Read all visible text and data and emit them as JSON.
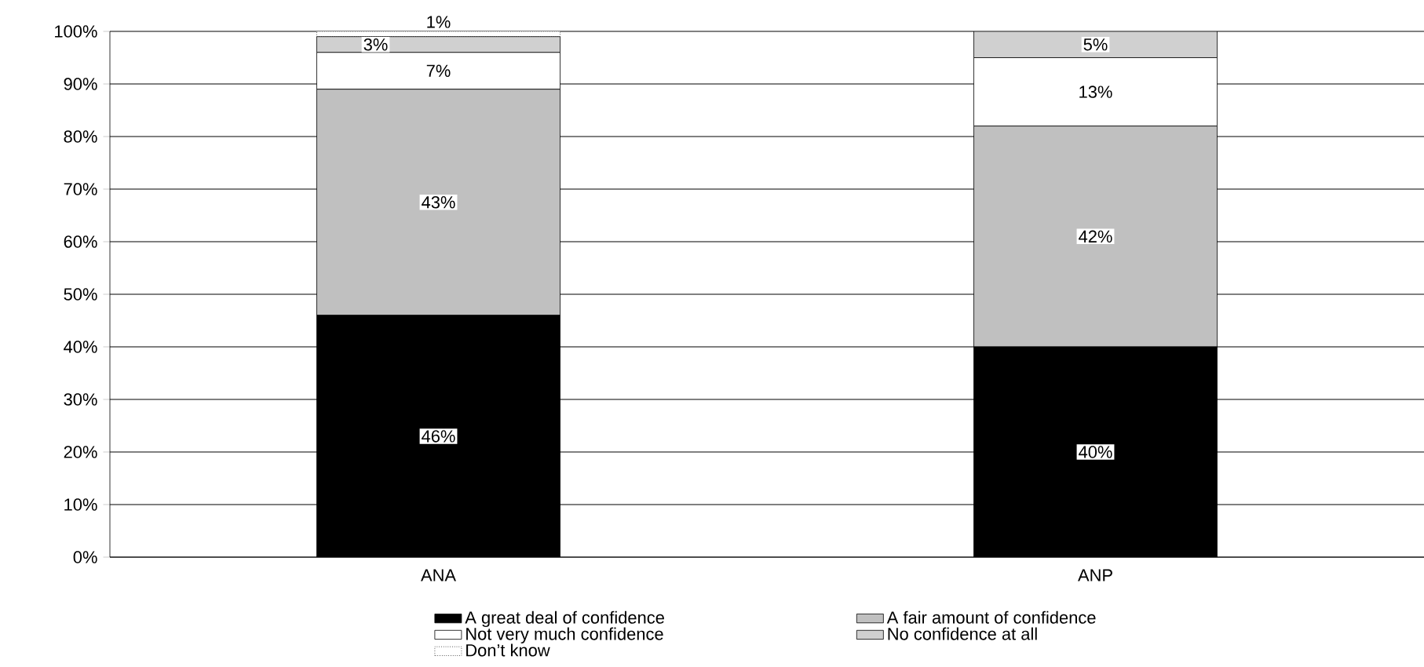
{
  "chart_data": {
    "type": "bar",
    "stacked": true,
    "categories": [
      "ANA",
      "ANP"
    ],
    "series": [
      {
        "name": "A great deal of confidence",
        "color": "#000000",
        "values": [
          46,
          40
        ],
        "value_labels": [
          "46%",
          "40%"
        ]
      },
      {
        "name": "A fair amount of confidence",
        "color": "#c0c0c0",
        "values": [
          43,
          42
        ],
        "value_labels": [
          "43%",
          "42%"
        ]
      },
      {
        "name": "Not very much confidence",
        "color": "#ffffff",
        "values": [
          7,
          13
        ],
        "value_labels": [
          "7%",
          "13%"
        ]
      },
      {
        "name": "No confidence at all",
        "color": "#d0d0d0",
        "values": [
          3,
          5
        ],
        "value_labels": [
          "3%",
          "5%"
        ]
      },
      {
        "name": "Don’t know",
        "color": "#ffffff",
        "values": [
          1,
          null
        ],
        "value_labels": [
          "1%",
          null
        ]
      }
    ],
    "ylim": [
      0,
      100
    ],
    "yticks": [
      {
        "value": 0,
        "label": "0%"
      },
      {
        "value": 10,
        "label": "10%"
      },
      {
        "value": 20,
        "label": "20%"
      },
      {
        "value": 30,
        "label": "30%"
      },
      {
        "value": 40,
        "label": "40%"
      },
      {
        "value": 50,
        "label": "50%"
      },
      {
        "value": 60,
        "label": "60%"
      },
      {
        "value": 70,
        "label": "70%"
      },
      {
        "value": 80,
        "label": "80%"
      },
      {
        "value": 90,
        "label": "90%"
      },
      {
        "value": 100,
        "label": "100%"
      }
    ],
    "grid": "y",
    "legend": "bottom"
  }
}
